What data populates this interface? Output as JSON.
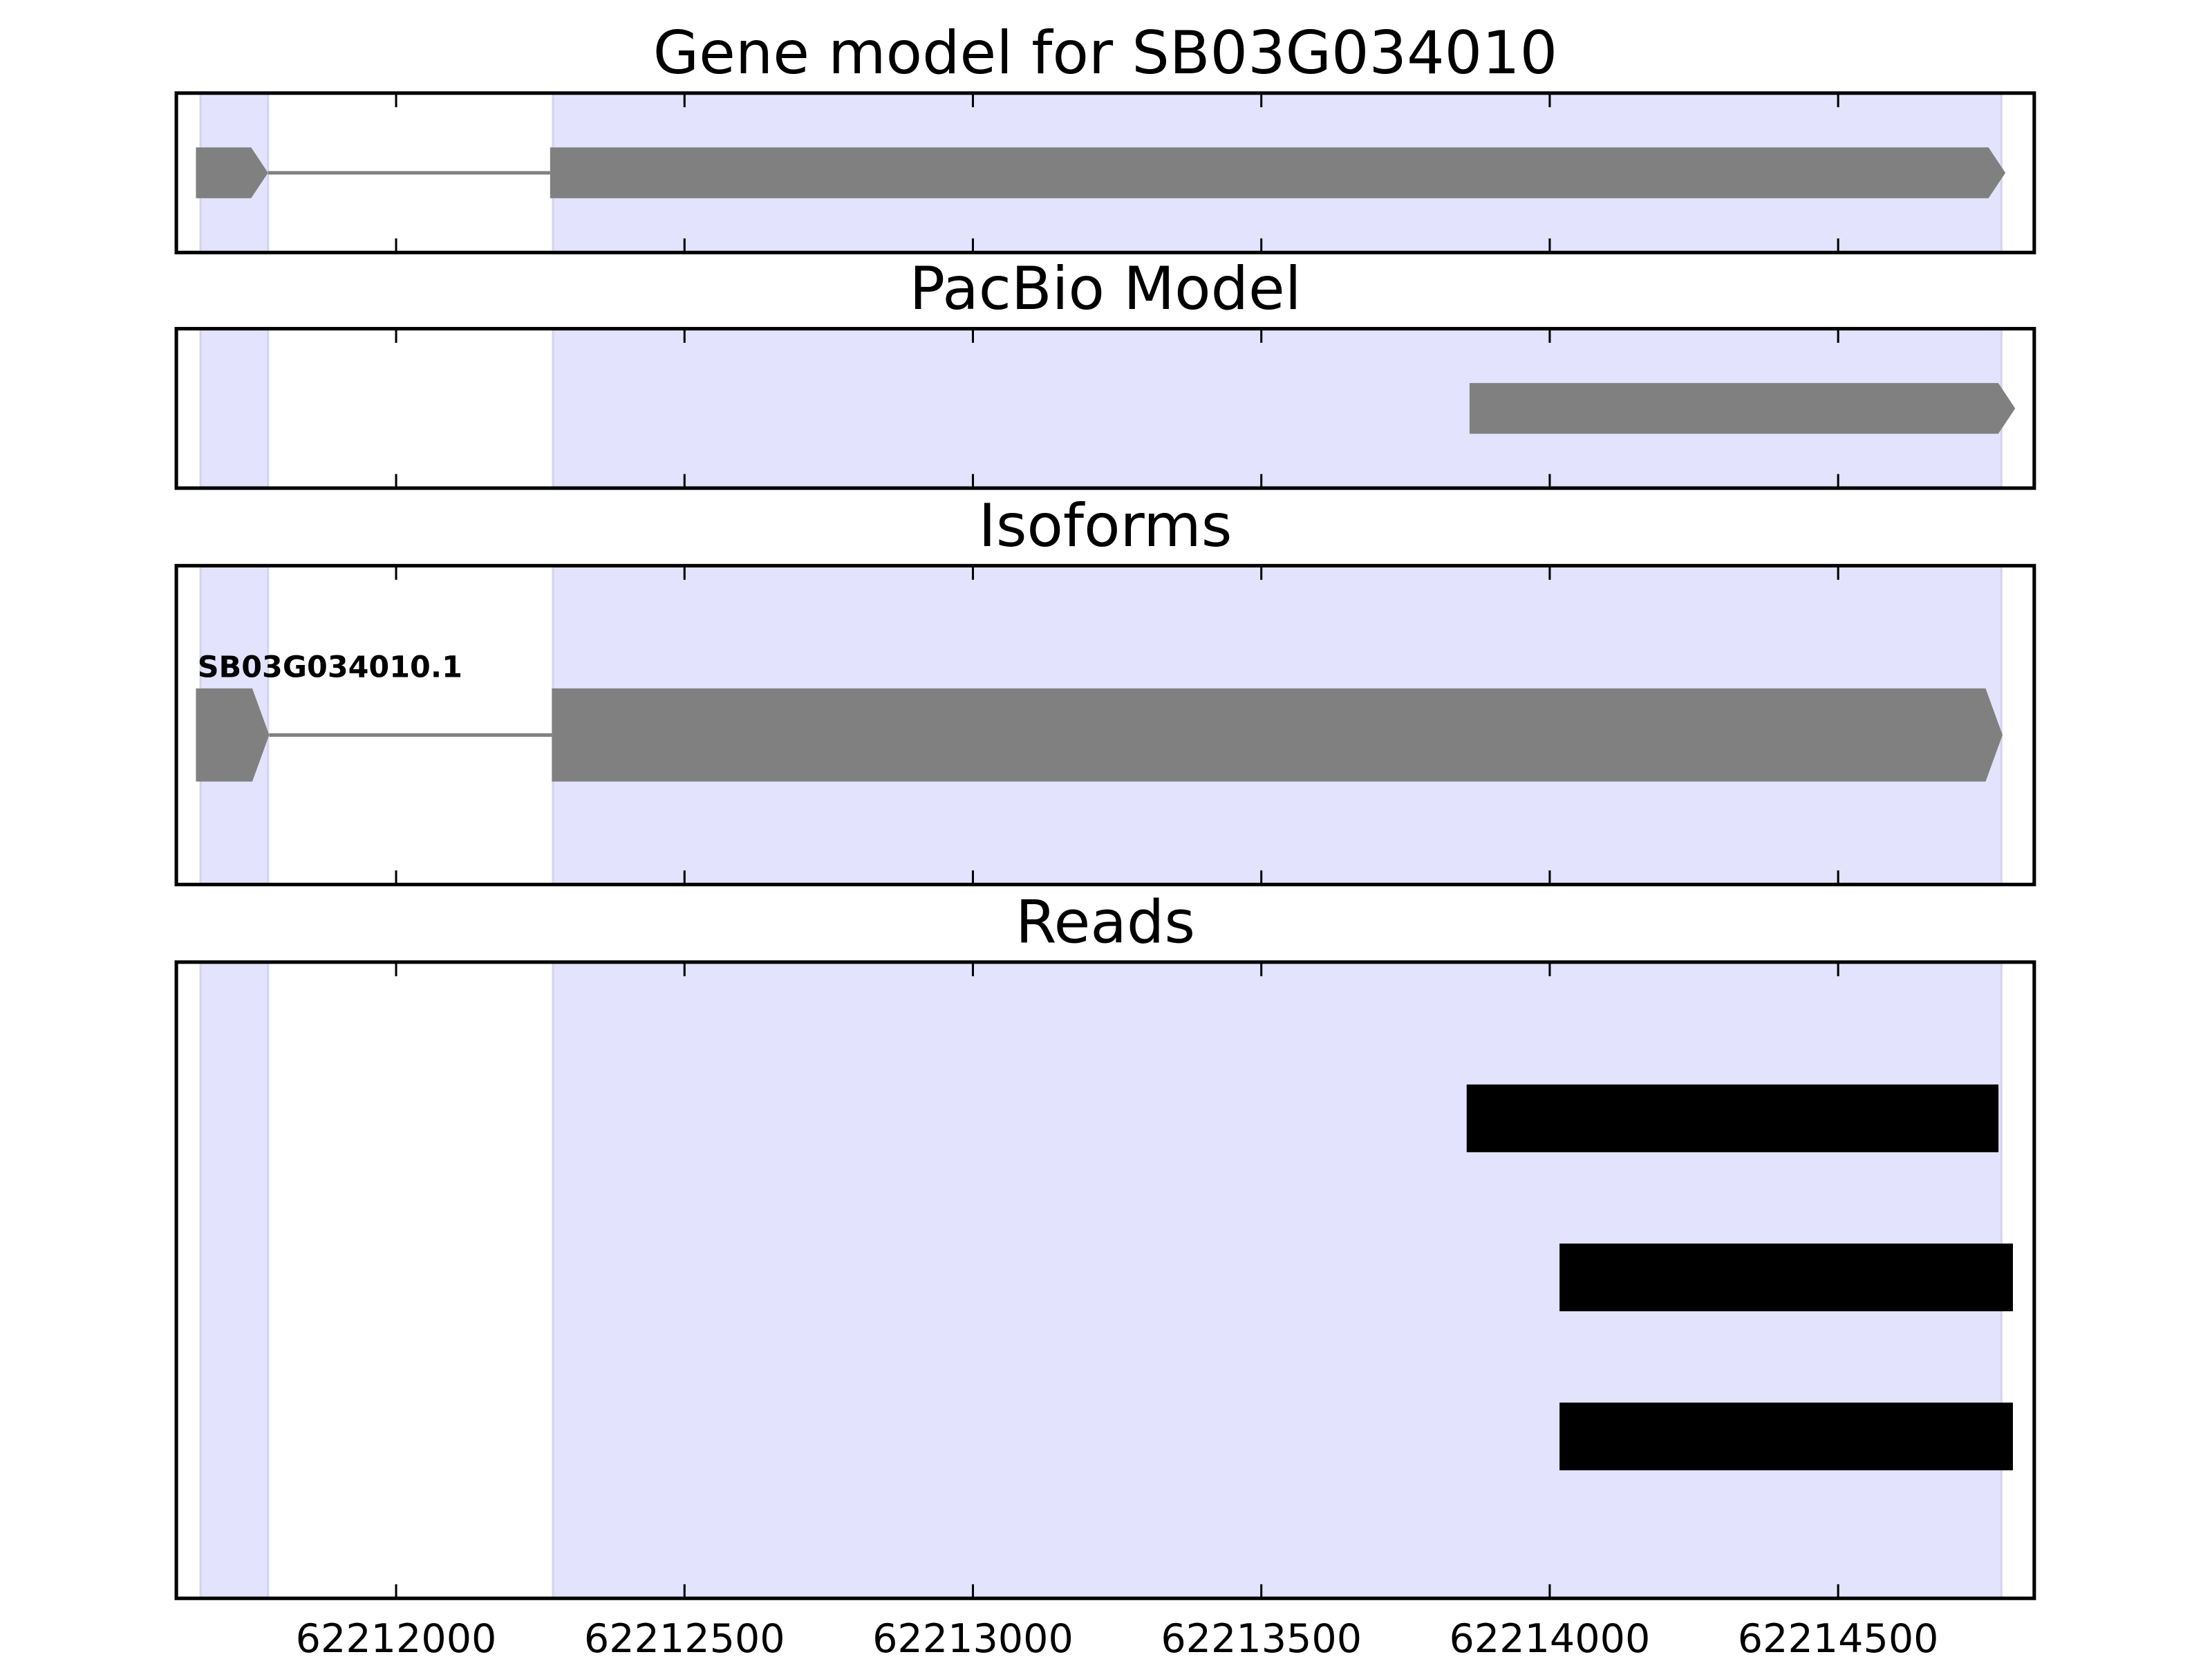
{
  "chart_data": [
    {
      "type": "gene",
      "title": "Gene model for SB03G034010",
      "exons": [
        [
          62211653,
          62211778
        ],
        [
          62212267,
          62214790
        ]
      ],
      "color": "#808080",
      "highlights": [
        [
          62211661,
          62211778
        ],
        [
          62212272,
          62214783
        ]
      ],
      "highlight_color": "#e3e3fd"
    },
    {
      "type": "gene",
      "title": "PacBio Model",
      "exons": [
        [
          62213861,
          62214807
        ]
      ],
      "color": "#808080",
      "highlights": [
        [
          62211661,
          62211778
        ],
        [
          62212272,
          62214783
        ]
      ],
      "highlight_color": "#e3e3fd"
    },
    {
      "type": "gene",
      "title": "Isoforms",
      "name": "SB03G034010.1",
      "exons": [
        [
          62211653,
          62211780
        ],
        [
          62212270,
          62214785
        ]
      ],
      "color": "#808080",
      "highlights": [
        [
          62211661,
          62211778
        ],
        [
          62212272,
          62214783
        ]
      ],
      "highlight_color": "#e3e3fd"
    },
    {
      "type": "reads",
      "title": "Reads",
      "reads": [
        [
          62213856,
          62214778
        ],
        [
          62214017,
          62214803
        ],
        [
          62214017,
          62214803
        ]
      ],
      "color": "#000000",
      "highlights": [
        [
          62211661,
          62211778
        ],
        [
          62212272,
          62214783
        ]
      ],
      "highlight_color": "#e3e3fd",
      "xlim": [
        62211619,
        62214840
      ],
      "xticks": [
        62212000,
        62212500,
        62213000,
        62213500,
        62214000,
        62214500
      ]
    }
  ]
}
